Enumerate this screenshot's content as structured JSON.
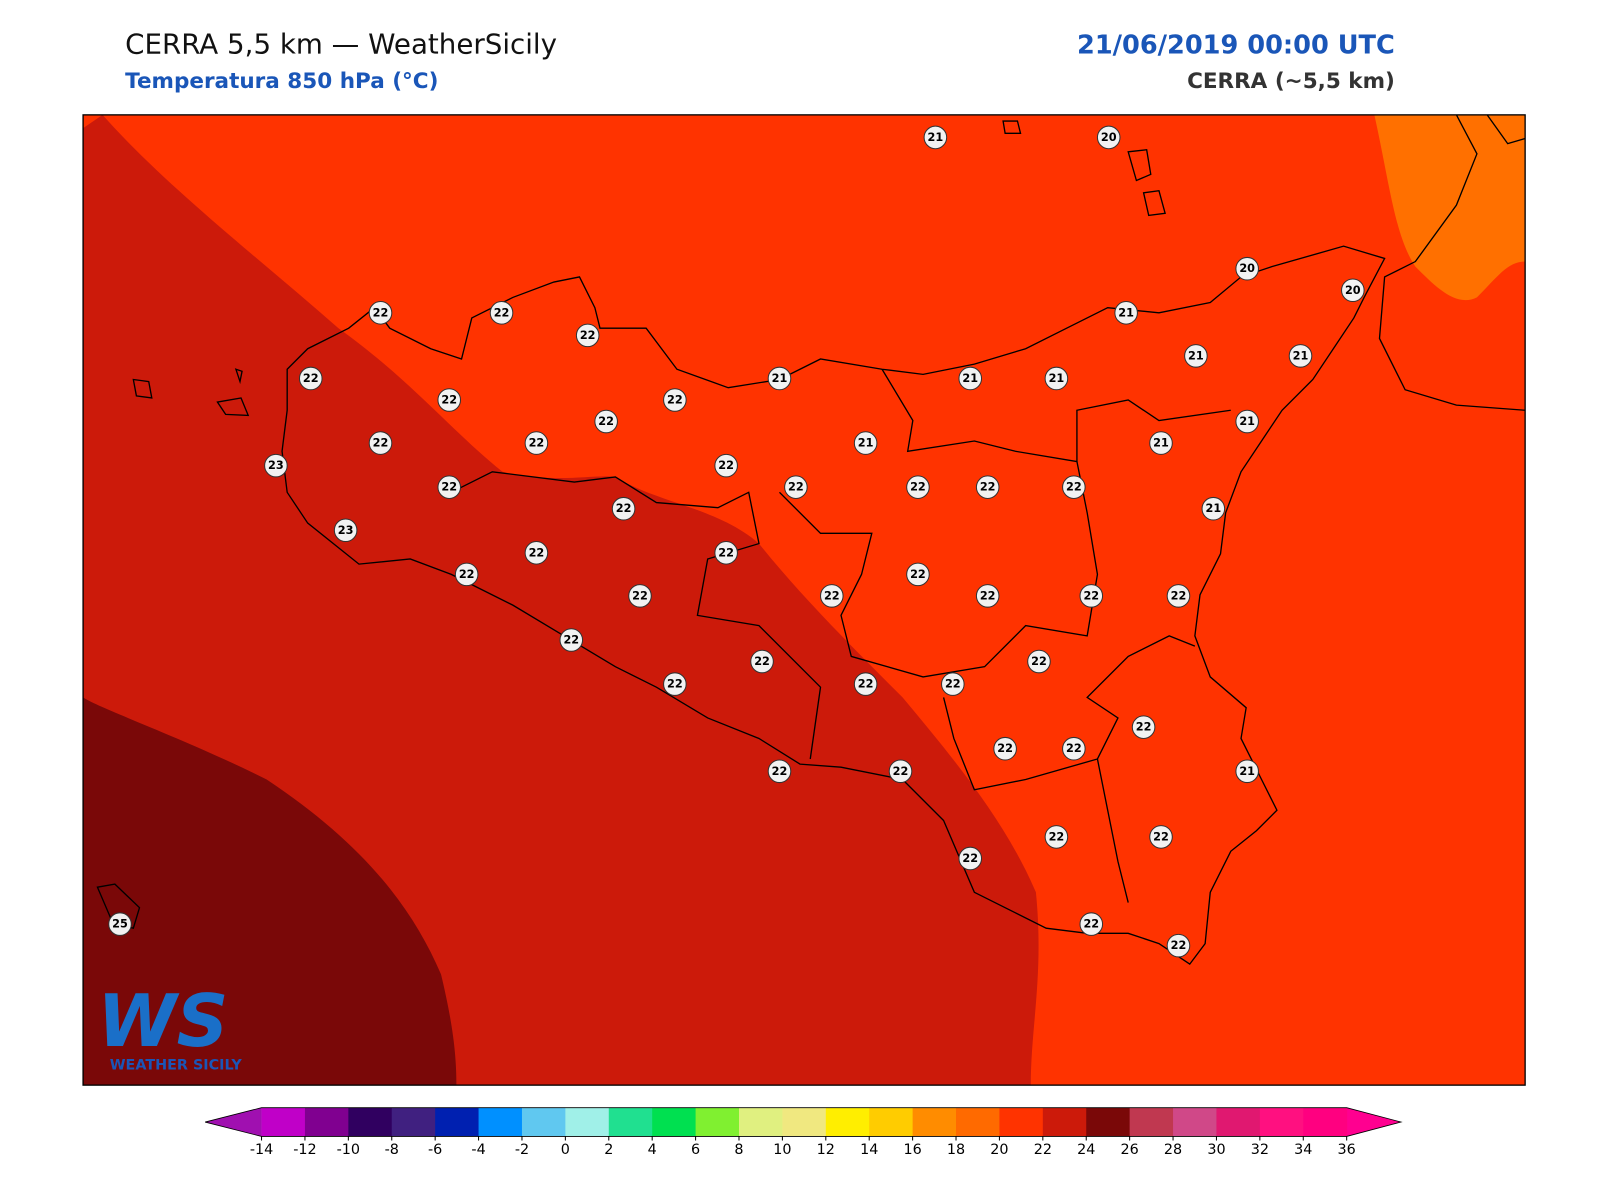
{
  "header": {
    "title": "CERRA 5,5 km — WeatherSicily",
    "subtitle": "Temperatura 850 hPa (°C)",
    "datetime": "21/06/2019 00:00 UTC",
    "model": "CERRA (~5,5 km)"
  },
  "map": {
    "station_values": [
      21,
      20,
      20,
      20,
      22,
      22,
      22,
      21,
      22,
      21,
      21,
      21,
      21,
      21,
      22,
      22,
      22,
      21,
      22,
      22,
      21,
      21,
      23,
      22,
      22,
      22,
      22,
      22,
      22,
      22,
      21,
      23,
      22,
      22,
      22,
      22,
      22,
      22,
      22,
      22,
      22,
      22,
      22,
      22,
      22,
      22,
      22,
      22,
      22,
      22,
      22,
      22,
      21,
      22,
      22,
      22,
      22,
      22,
      25
    ]
  },
  "colorbar": {
    "ticks": [
      -14,
      -12,
      -10,
      -8,
      -6,
      -4,
      -2,
      0,
      2,
      4,
      6,
      8,
      10,
      12,
      14,
      16,
      18,
      20,
      22,
      24,
      26,
      28,
      30,
      32,
      34,
      36
    ],
    "colors": [
      "#c000c8",
      "#800090",
      "#300060",
      "#402080",
      "#0020b0",
      "#0090ff",
      "#60c8f0",
      "#a0f0e8",
      "#20e090",
      "#00e050",
      "#80f030",
      "#e0f080",
      "#f0e880",
      "#ffee00",
      "#ffcc00",
      "#ff8c00",
      "#ff6a00",
      "#ff3300",
      "#cc1a0a",
      "#7a0808",
      "#c03850",
      "#d04888",
      "#e01870",
      "#ff1080",
      "#ff0080"
    ],
    "under": "#a010b0",
    "over": "#ff0090"
  },
  "logo": {
    "mark": "WS",
    "text": "WEATHER SICILY"
  }
}
